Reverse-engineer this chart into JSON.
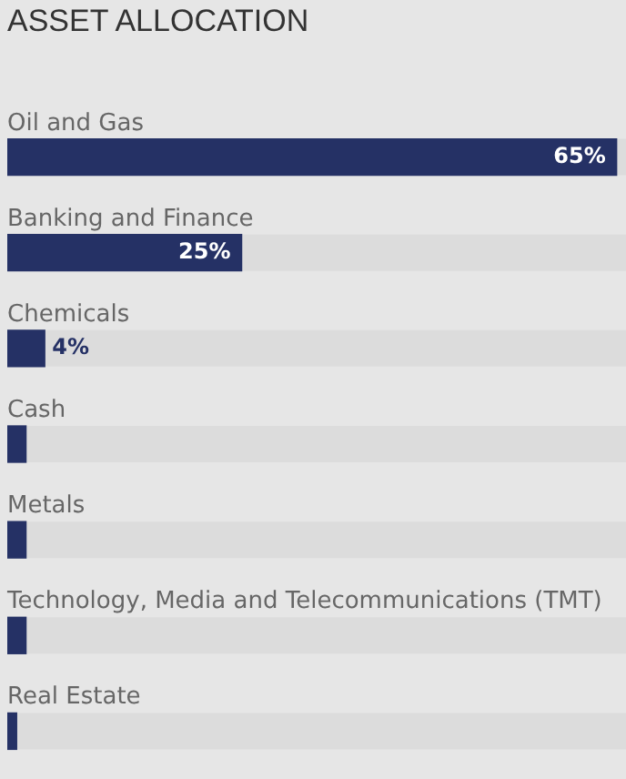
{
  "chart_data": {
    "type": "bar",
    "orientation": "horizontal",
    "title": "ASSET ALLOCATION",
    "categories": [
      "Oil and Gas",
      "Banking and Finance",
      "Chemicals",
      "Cash",
      "Metals",
      "Technology, Media and Telecommunications (TMT)",
      "Real Estate"
    ],
    "values": [
      65,
      25,
      4,
      2,
      2,
      2,
      1
    ],
    "value_labels": [
      "65%",
      "25%",
      "4%",
      null,
      null,
      null,
      null
    ],
    "color": "#253165",
    "xlim": [
      0,
      66
    ]
  }
}
